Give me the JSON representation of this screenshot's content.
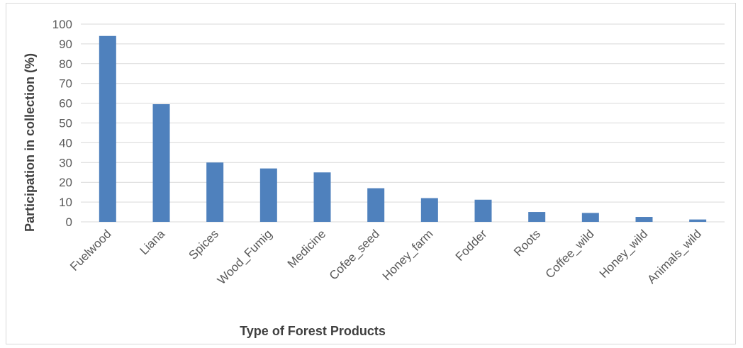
{
  "chart_data": {
    "type": "bar",
    "title": "",
    "xlabel": "Type of Forest Products",
    "ylabel": "Participation in collection (%)",
    "categories": [
      "Fuelwood",
      "Liana",
      "Spices",
      "Wood_Fumig",
      "Medicine",
      "Cofee_seed",
      "Honey_farm",
      "Fodder",
      "Roots",
      "Coffee_wild",
      "Honey_wild",
      "Animals_wild"
    ],
    "values": [
      94,
      59.5,
      30,
      27,
      25,
      17,
      12,
      11.2,
      5,
      4.5,
      2.5,
      1.2
    ],
    "ylim": [
      0,
      100
    ],
    "yticks": [
      0,
      10,
      20,
      30,
      40,
      50,
      60,
      70,
      80,
      90,
      100
    ],
    "grid": true,
    "legend": "none",
    "bar_color": "#4f81bd",
    "grid_color": "#d9d9d9"
  }
}
